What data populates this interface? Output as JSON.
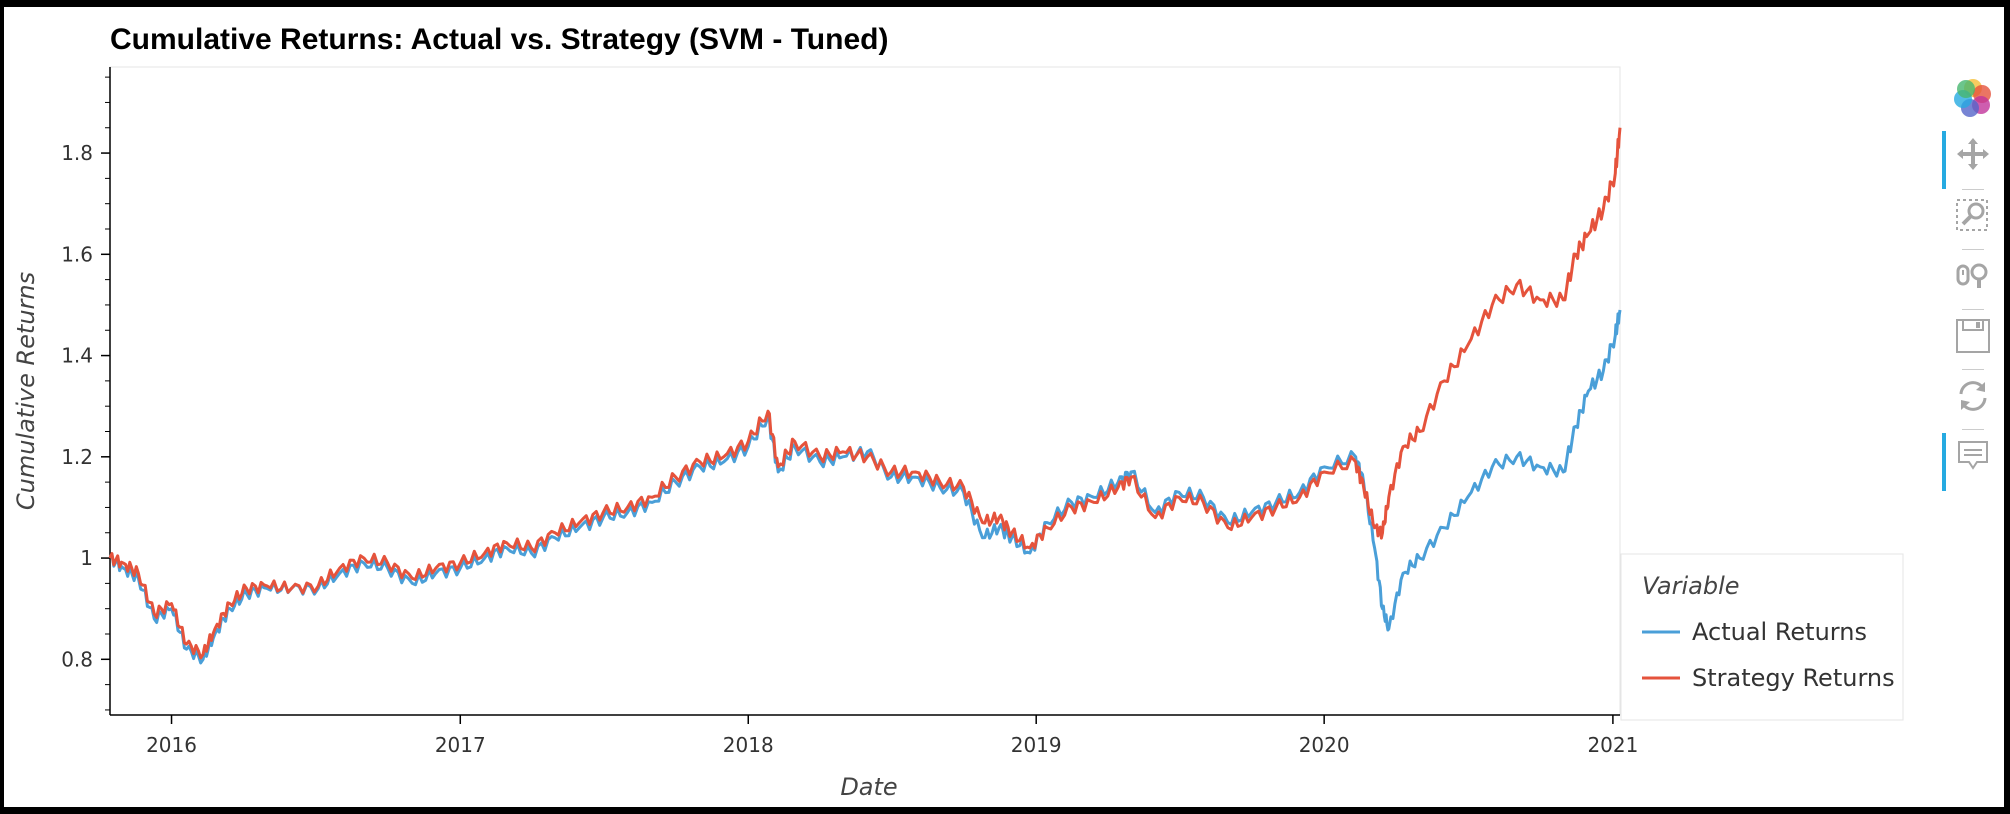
{
  "chart_data": {
    "type": "line",
    "title": "Cumulative Returns: Actual vs. Strategy (SVM - Tuned)",
    "xlabel": "Date",
    "ylabel": "Cumulative Returns",
    "x_ticks": [
      "2016",
      "2017",
      "2018",
      "2019",
      "2020",
      "2021"
    ],
    "y_ticks": [
      "0.8",
      "1",
      "1.2",
      "1.4",
      "1.6",
      "1.8"
    ],
    "xlim": [
      "2015-10-15",
      "2021-01-10"
    ],
    "ylim": [
      0.69,
      1.97
    ],
    "grid": false,
    "legend": {
      "title": "Variable",
      "placement": "right"
    },
    "series": [
      {
        "name": "Actual Returns",
        "color": "#4a9fd8",
        "points": [
          [
            "2015-10-15",
            1.0
          ],
          [
            "2015-11-01",
            0.98
          ],
          [
            "2015-11-20",
            0.96
          ],
          [
            "2015-12-10",
            0.88
          ],
          [
            "2016-01-01",
            0.9
          ],
          [
            "2016-01-20",
            0.82
          ],
          [
            "2016-02-10",
            0.8
          ],
          [
            "2016-02-25",
            0.85
          ],
          [
            "2016-03-15",
            0.9
          ],
          [
            "2016-04-05",
            0.93
          ],
          [
            "2016-05-01",
            0.94
          ],
          [
            "2016-06-01",
            0.94
          ],
          [
            "2016-07-05",
            0.94
          ],
          [
            "2016-08-01",
            0.97
          ],
          [
            "2016-09-01",
            0.99
          ],
          [
            "2016-10-01",
            0.98
          ],
          [
            "2016-11-01",
            0.95
          ],
          [
            "2016-12-01",
            0.97
          ],
          [
            "2017-01-01",
            0.98
          ],
          [
            "2017-02-01",
            1.0
          ],
          [
            "2017-03-01",
            1.02
          ],
          [
            "2017-04-01",
            1.01
          ],
          [
            "2017-05-01",
            1.04
          ],
          [
            "2017-06-01",
            1.06
          ],
          [
            "2017-07-01",
            1.08
          ],
          [
            "2017-08-01",
            1.09
          ],
          [
            "2017-09-01",
            1.11
          ],
          [
            "2017-10-01",
            1.15
          ],
          [
            "2017-11-01",
            1.18
          ],
          [
            "2017-12-01",
            1.19
          ],
          [
            "2018-01-01",
            1.22
          ],
          [
            "2018-01-26",
            1.28
          ],
          [
            "2018-02-08",
            1.17
          ],
          [
            "2018-03-01",
            1.22
          ],
          [
            "2018-04-02",
            1.19
          ],
          [
            "2018-05-01",
            1.2
          ],
          [
            "2018-06-01",
            1.21
          ],
          [
            "2018-07-01",
            1.16
          ],
          [
            "2018-08-01",
            1.16
          ],
          [
            "2018-09-01",
            1.14
          ],
          [
            "2018-10-01",
            1.13
          ],
          [
            "2018-10-25",
            1.04
          ],
          [
            "2018-11-15",
            1.06
          ],
          [
            "2018-12-01",
            1.04
          ],
          [
            "2018-12-24",
            1.01
          ],
          [
            "2019-01-15",
            1.07
          ],
          [
            "2019-02-15",
            1.11
          ],
          [
            "2019-03-15",
            1.12
          ],
          [
            "2019-04-15",
            1.15
          ],
          [
            "2019-05-01",
            1.17
          ],
          [
            "2019-06-01",
            1.09
          ],
          [
            "2019-07-01",
            1.13
          ],
          [
            "2019-08-01",
            1.12
          ],
          [
            "2019-09-01",
            1.07
          ],
          [
            "2019-10-01",
            1.09
          ],
          [
            "2019-11-01",
            1.11
          ],
          [
            "2019-12-01",
            1.13
          ],
          [
            "2020-01-01",
            1.18
          ],
          [
            "2020-02-10",
            1.2
          ],
          [
            "2020-02-20",
            1.15
          ],
          [
            "2020-03-05",
            1.02
          ],
          [
            "2020-03-15",
            0.9
          ],
          [
            "2020-03-23",
            0.86
          ],
          [
            "2020-04-10",
            0.97
          ],
          [
            "2020-05-01",
            1.0
          ],
          [
            "2020-06-01",
            1.06
          ],
          [
            "2020-07-01",
            1.12
          ],
          [
            "2020-08-01",
            1.18
          ],
          [
            "2020-09-01",
            1.2
          ],
          [
            "2020-10-01",
            1.18
          ],
          [
            "2020-10-30",
            1.17
          ],
          [
            "2020-11-15",
            1.26
          ],
          [
            "2020-12-01",
            1.33
          ],
          [
            "2020-12-20",
            1.37
          ],
          [
            "2021-01-04",
            1.44
          ],
          [
            "2021-01-10",
            1.49
          ]
        ]
      },
      {
        "name": "Strategy Returns",
        "color": "#e5533c",
        "points": [
          [
            "2015-10-15",
            1.0
          ],
          [
            "2015-11-01",
            0.99
          ],
          [
            "2015-11-20",
            0.97
          ],
          [
            "2015-12-10",
            0.89
          ],
          [
            "2016-01-01",
            0.91
          ],
          [
            "2016-01-20",
            0.83
          ],
          [
            "2016-02-10",
            0.81
          ],
          [
            "2016-02-25",
            0.86
          ],
          [
            "2016-03-15",
            0.91
          ],
          [
            "2016-04-05",
            0.94
          ],
          [
            "2016-05-01",
            0.945
          ],
          [
            "2016-06-01",
            0.94
          ],
          [
            "2016-07-05",
            0.945
          ],
          [
            "2016-08-01",
            0.98
          ],
          [
            "2016-09-01",
            1.0
          ],
          [
            "2016-10-01",
            0.99
          ],
          [
            "2016-11-01",
            0.96
          ],
          [
            "2016-12-01",
            0.98
          ],
          [
            "2017-01-01",
            0.99
          ],
          [
            "2017-02-01",
            1.01
          ],
          [
            "2017-03-01",
            1.03
          ],
          [
            "2017-04-01",
            1.02
          ],
          [
            "2017-05-01",
            1.05
          ],
          [
            "2017-06-01",
            1.07
          ],
          [
            "2017-07-01",
            1.09
          ],
          [
            "2017-08-01",
            1.1
          ],
          [
            "2017-09-01",
            1.12
          ],
          [
            "2017-10-01",
            1.16
          ],
          [
            "2017-11-01",
            1.19
          ],
          [
            "2017-12-01",
            1.2
          ],
          [
            "2018-01-01",
            1.23
          ],
          [
            "2018-01-26",
            1.29
          ],
          [
            "2018-02-08",
            1.18
          ],
          [
            "2018-03-01",
            1.23
          ],
          [
            "2018-04-02",
            1.2
          ],
          [
            "2018-05-01",
            1.21
          ],
          [
            "2018-06-01",
            1.2
          ],
          [
            "2018-07-01",
            1.17
          ],
          [
            "2018-08-01",
            1.17
          ],
          [
            "2018-09-01",
            1.15
          ],
          [
            "2018-10-01",
            1.14
          ],
          [
            "2018-10-25",
            1.07
          ],
          [
            "2018-11-15",
            1.08
          ],
          [
            "2018-12-01",
            1.05
          ],
          [
            "2018-12-24",
            1.02
          ],
          [
            "2019-01-15",
            1.06
          ],
          [
            "2019-02-15",
            1.1
          ],
          [
            "2019-03-15",
            1.11
          ],
          [
            "2019-04-15",
            1.14
          ],
          [
            "2019-05-01",
            1.16
          ],
          [
            "2019-06-01",
            1.08
          ],
          [
            "2019-07-01",
            1.12
          ],
          [
            "2019-08-01",
            1.11
          ],
          [
            "2019-09-01",
            1.06
          ],
          [
            "2019-10-01",
            1.08
          ],
          [
            "2019-11-01",
            1.1
          ],
          [
            "2019-12-01",
            1.12
          ],
          [
            "2020-01-01",
            1.17
          ],
          [
            "2020-02-10",
            1.19
          ],
          [
            "2020-02-20",
            1.14
          ],
          [
            "2020-03-05",
            1.06
          ],
          [
            "2020-03-15",
            1.05
          ],
          [
            "2020-03-23",
            1.12
          ],
          [
            "2020-04-10",
            1.22
          ],
          [
            "2020-05-01",
            1.25
          ],
          [
            "2020-06-01",
            1.35
          ],
          [
            "2020-07-01",
            1.42
          ],
          [
            "2020-08-01",
            1.5
          ],
          [
            "2020-09-01",
            1.54
          ],
          [
            "2020-10-01",
            1.51
          ],
          [
            "2020-10-30",
            1.51
          ],
          [
            "2020-11-15",
            1.6
          ],
          [
            "2020-12-01",
            1.64
          ],
          [
            "2020-12-20",
            1.69
          ],
          [
            "2021-01-04",
            1.76
          ],
          [
            "2021-01-10",
            1.85
          ]
        ]
      }
    ]
  },
  "toolbar": {
    "tools": [
      "bokeh-logo-icon",
      "pan-icon",
      "box-zoom-icon",
      "wheel-zoom-icon",
      "save-icon",
      "reset-icon",
      "hover-icon"
    ],
    "active_color": "#26aae1"
  }
}
